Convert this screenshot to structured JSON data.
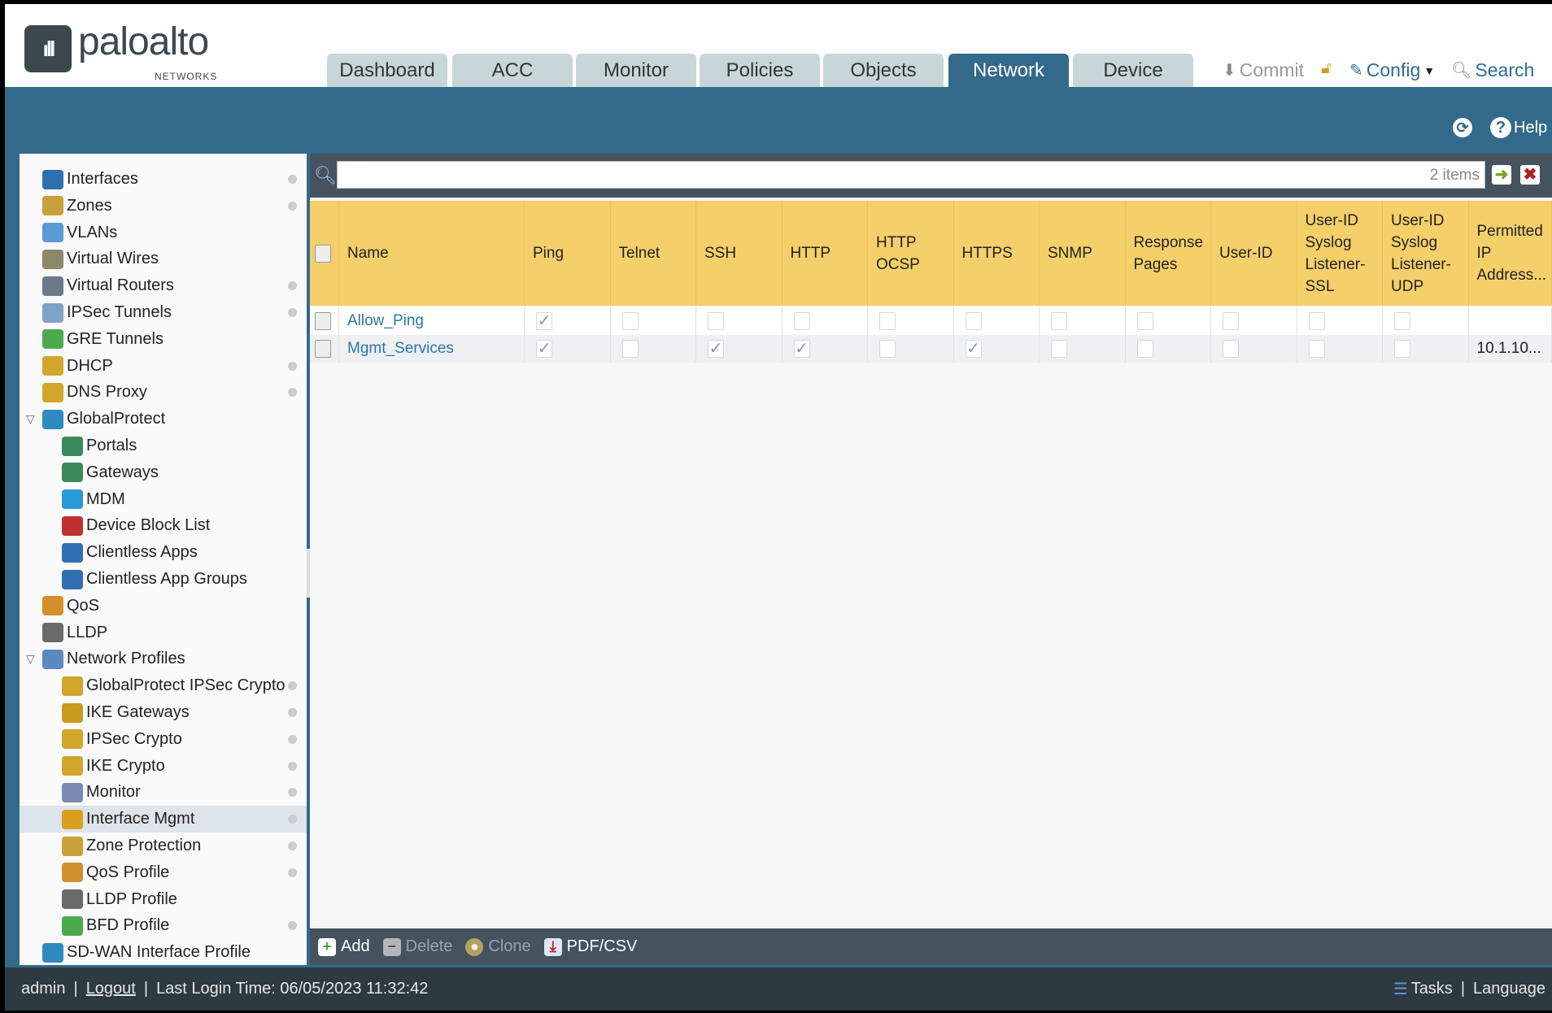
{
  "logo": {
    "word": "paloalto",
    "sub": "NETWORKS"
  },
  "tabs": [
    {
      "label": "Dashboard"
    },
    {
      "label": "ACC"
    },
    {
      "label": "Monitor"
    },
    {
      "label": "Policies"
    },
    {
      "label": "Objects"
    },
    {
      "label": "Network",
      "active": true
    },
    {
      "label": "Device"
    }
  ],
  "toplinks": {
    "commit": "Commit",
    "config": "Config",
    "search": "Search"
  },
  "help": "Help",
  "sidebar": {
    "items": [
      {
        "label": "Interfaces",
        "level": 1,
        "dot": true,
        "icon": "interfaces-icon",
        "color": "#2f6fb0"
      },
      {
        "label": "Zones",
        "level": 1,
        "dot": true,
        "icon": "zones-icon",
        "color": "#c9a13a"
      },
      {
        "label": "VLANs",
        "level": 1,
        "dot": false,
        "icon": "vlans-icon",
        "color": "#5a9ad6"
      },
      {
        "label": "Virtual Wires",
        "level": 1,
        "dot": false,
        "icon": "virtual-wires-icon",
        "color": "#8a8a6a"
      },
      {
        "label": "Virtual Routers",
        "level": 1,
        "dot": true,
        "icon": "virtual-routers-icon",
        "color": "#6a7a8a"
      },
      {
        "label": "IPSec Tunnels",
        "level": 1,
        "dot": true,
        "icon": "ipsec-tunnels-icon",
        "color": "#7fa3c7"
      },
      {
        "label": "GRE Tunnels",
        "level": 1,
        "dot": false,
        "icon": "gre-tunnels-icon",
        "color": "#4caa4c"
      },
      {
        "label": "DHCP",
        "level": 1,
        "dot": true,
        "icon": "dhcp-icon",
        "color": "#d2a62a"
      },
      {
        "label": "DNS Proxy",
        "level": 1,
        "dot": true,
        "icon": "dns-proxy-icon",
        "color": "#d2a62a"
      },
      {
        "label": "GlobalProtect",
        "level": 1,
        "dot": false,
        "expanded": true,
        "icon": "globalprotect-icon",
        "color": "#2f8ac0"
      },
      {
        "label": "Portals",
        "level": 2,
        "dot": false,
        "icon": "portals-icon",
        "color": "#3a8a5a"
      },
      {
        "label": "Gateways",
        "level": 2,
        "dot": false,
        "icon": "gateways-icon",
        "color": "#3a8a5a"
      },
      {
        "label": "MDM",
        "level": 2,
        "dot": false,
        "icon": "mdm-icon",
        "color": "#2a9ad6"
      },
      {
        "label": "Device Block List",
        "level": 2,
        "dot": false,
        "icon": "device-block-list-icon",
        "color": "#c03030"
      },
      {
        "label": "Clientless Apps",
        "level": 2,
        "dot": false,
        "icon": "clientless-apps-icon",
        "color": "#2f6fb0"
      },
      {
        "label": "Clientless App Groups",
        "level": 2,
        "dot": false,
        "icon": "clientless-app-groups-icon",
        "color": "#2f6fb0"
      },
      {
        "label": "QoS",
        "level": 1,
        "dot": false,
        "icon": "qos-icon",
        "color": "#d2902a"
      },
      {
        "label": "LLDP",
        "level": 1,
        "dot": false,
        "icon": "lldp-icon",
        "color": "#6a6a6a"
      },
      {
        "label": "Network Profiles",
        "level": 1,
        "dot": false,
        "expanded": true,
        "icon": "network-profiles-icon",
        "color": "#5a8ac0"
      },
      {
        "label": "GlobalProtect IPSec Crypto",
        "level": 2,
        "dot": true,
        "icon": "lock-icon",
        "color": "#d2a62a"
      },
      {
        "label": "IKE Gateways",
        "level": 2,
        "dot": true,
        "icon": "ike-gateways-icon",
        "color": "#c99a20"
      },
      {
        "label": "IPSec Crypto",
        "level": 2,
        "dot": true,
        "icon": "lock-icon",
        "color": "#d2a62a"
      },
      {
        "label": "IKE Crypto",
        "level": 2,
        "dot": true,
        "icon": "lock-icon",
        "color": "#d2a62a"
      },
      {
        "label": "Monitor",
        "level": 2,
        "dot": true,
        "icon": "monitor-icon",
        "color": "#7a8ab0"
      },
      {
        "label": "Interface Mgmt",
        "level": 2,
        "dot": true,
        "selected": true,
        "icon": "interface-mgmt-icon",
        "color": "#d9a020"
      },
      {
        "label": "Zone Protection",
        "level": 2,
        "dot": true,
        "icon": "zone-protection-icon",
        "color": "#c9a13a"
      },
      {
        "label": "QoS Profile",
        "level": 2,
        "dot": true,
        "icon": "qos-profile-icon",
        "color": "#d2902a"
      },
      {
        "label": "LLDP Profile",
        "level": 2,
        "dot": false,
        "icon": "lldp-profile-icon",
        "color": "#6a6a6a"
      },
      {
        "label": "BFD Profile",
        "level": 2,
        "dot": true,
        "icon": "bfd-profile-icon",
        "color": "#4caa4c"
      },
      {
        "label": "SD-WAN Interface Profile",
        "level": 1,
        "dot": false,
        "icon": "sdwan-icon",
        "color": "#2f8ac0"
      }
    ]
  },
  "filter": {
    "placeholder": "",
    "count": "2 items"
  },
  "table": {
    "columns": [
      "Name",
      "Ping",
      "Telnet",
      "SSH",
      "HTTP",
      "HTTP OCSP",
      "HTTPS",
      "SNMP",
      "Response Pages",
      "User-ID",
      "User-ID Syslog Listener-SSL",
      "User-ID Syslog Listener-UDP",
      "Permitted IP Address..."
    ],
    "rows": [
      {
        "name": "Allow_Ping",
        "checks": [
          true,
          false,
          false,
          false,
          false,
          false,
          false,
          false,
          false,
          false,
          false
        ],
        "permitted": ""
      },
      {
        "name": "Mgmt_Services",
        "checks": [
          true,
          false,
          true,
          true,
          false,
          true,
          false,
          false,
          false,
          false,
          false
        ],
        "permitted": "10.1.10..."
      }
    ]
  },
  "actions": {
    "add": "Add",
    "delete": "Delete",
    "clone": "Clone",
    "pdf": "PDF/CSV"
  },
  "footer": {
    "user": "admin",
    "logout": "Logout",
    "last_login": "Last Login Time: 06/05/2023 11:32:42",
    "tasks": "Tasks",
    "language": "Language"
  }
}
